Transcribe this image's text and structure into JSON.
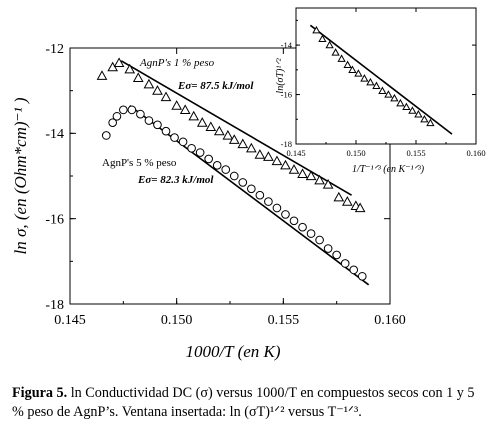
{
  "chart_data": [
    {
      "type": "scatter",
      "xlabel": "1000/T (en K)",
      "ylabel": "ln σ, (en (Ohm*cm)⁻¹ )",
      "xlim": [
        0.145,
        0.16
      ],
      "ylim": [
        -18,
        -12
      ],
      "xticks": [
        "0.145",
        "0.150",
        "0.155",
        "0.160"
      ],
      "yticks": [
        "-12",
        "-14",
        "-16",
        "-18"
      ],
      "series": [
        {
          "name": "AgnP's 1 % peso",
          "marker": "triangle",
          "x": [
            0.1465,
            0.147,
            0.1473,
            0.1478,
            0.1482,
            0.1487,
            0.1491,
            0.1495,
            0.15,
            0.1504,
            0.1508,
            0.1512,
            0.1516,
            0.152,
            0.1524,
            0.1527,
            0.1531,
            0.1535,
            0.1539,
            0.1543,
            0.1547,
            0.1551,
            0.1555,
            0.1559,
            0.1563,
            0.1567,
            0.1571,
            0.1576,
            0.158,
            0.1584,
            0.1586
          ],
          "y": [
            -12.65,
            -12.45,
            -12.35,
            -12.5,
            -12.7,
            -12.85,
            -13.0,
            -13.15,
            -13.35,
            -13.45,
            -13.6,
            -13.75,
            -13.85,
            -13.95,
            -14.05,
            -14.15,
            -14.25,
            -14.35,
            -14.5,
            -14.55,
            -14.65,
            -14.75,
            -14.85,
            -14.95,
            -15.0,
            -15.1,
            -15.2,
            -15.5,
            -15.6,
            -15.7,
            -15.75
          ]
        },
        {
          "name": "AgnP's 5 % peso",
          "marker": "circle",
          "x": [
            0.1467,
            0.147,
            0.1472,
            0.1475,
            0.1479,
            0.1483,
            0.1487,
            0.1491,
            0.1495,
            0.1499,
            0.1503,
            0.1507,
            0.1511,
            0.1515,
            0.1519,
            0.1523,
            0.1527,
            0.1531,
            0.1535,
            0.1539,
            0.1543,
            0.1547,
            0.1551,
            0.1555,
            0.1559,
            0.1563,
            0.1567,
            0.1571,
            0.1575,
            0.1579,
            0.1583,
            0.1587
          ],
          "y": [
            -14.05,
            -13.75,
            -13.6,
            -13.45,
            -13.45,
            -13.55,
            -13.7,
            -13.8,
            -13.95,
            -14.1,
            -14.2,
            -14.35,
            -14.45,
            -14.6,
            -14.75,
            -14.85,
            -15.0,
            -15.15,
            -15.3,
            -15.45,
            -15.6,
            -15.75,
            -15.9,
            -16.05,
            -16.2,
            -16.35,
            -16.5,
            -16.7,
            -16.85,
            -17.05,
            -17.2,
            -17.35
          ]
        }
      ],
      "fit_lines": [
        {
          "x": [
            0.1474,
            0.1582
          ],
          "y": [
            -12.3,
            -15.45
          ]
        },
        {
          "x": [
            0.1478,
            0.159
          ],
          "y": [
            -13.35,
            -17.55
          ]
        }
      ],
      "annotations": [
        {
          "text": "AgnP's 1 % peso"
        },
        {
          "text": "Eσ= 87.5 kJ/mol"
        },
        {
          "text": "AgnP's 5 % peso"
        },
        {
          "text": "Eσ= 82.3 kJ/mol"
        }
      ]
    },
    {
      "type": "scatter",
      "inset": true,
      "xlabel": "1/T⁻¹ᐟ³ (en K⁻¹ᐟ³)",
      "ylabel": "ln(σT)¹ᐟ²",
      "xlim": [
        0.145,
        0.16
      ],
      "ylim": [
        -18,
        -12.5
      ],
      "xticks": [
        "0.145",
        "0.150",
        "0.155",
        "0.160"
      ],
      "yticks": [
        "-14",
        "-16",
        "-18"
      ],
      "series": [
        {
          "marker": "triangle",
          "x": [
            0.1467,
            0.1472,
            0.1478,
            0.1483,
            0.1488,
            0.1493,
            0.1497,
            0.1502,
            0.1507,
            0.1512,
            0.1517,
            0.1522,
            0.1527,
            0.1532,
            0.1537,
            0.1542,
            0.1547,
            0.1552,
            0.1557,
            0.1562
          ],
          "y": [
            -13.4,
            -13.75,
            -14.0,
            -14.3,
            -14.55,
            -14.8,
            -15.0,
            -15.15,
            -15.35,
            -15.5,
            -15.65,
            -15.85,
            -16.0,
            -16.15,
            -16.35,
            -16.5,
            -16.65,
            -16.8,
            -17.0,
            -17.15
          ]
        }
      ],
      "fit_lines": [
        {
          "x": [
            0.1462,
            0.158
          ],
          "y": [
            -13.2,
            -17.6
          ]
        }
      ]
    }
  ],
  "caption": {
    "label": "Figura 5.",
    "text": "ln Conductividad DC (σ) versus 1000/T en compuestos secos con 1 y 5 % peso de AgnP’s. Ventana insertada: ln (σT)¹ᐟ² versus T⁻¹ᐟ³."
  }
}
